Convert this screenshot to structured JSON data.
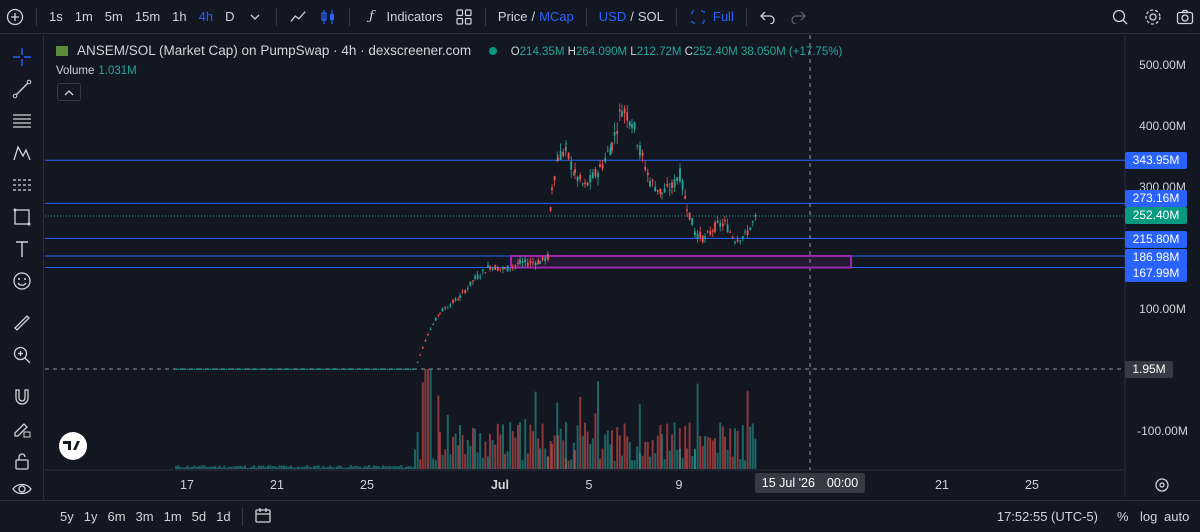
{
  "toolbar": {
    "intervals": [
      "1s",
      "1m",
      "5m",
      "15m",
      "1h",
      "4h",
      "D"
    ],
    "active_interval": "4h",
    "indicators_label": "Indicators",
    "price_label": "Price",
    "mcap_label": "MCap",
    "usd_label": "USD",
    "sol_label": "SOL",
    "full_label": "Full",
    "slash": "/"
  },
  "legend": {
    "title": "ANSEM/SOL (Market Cap) on PumpSwap · 4h · dexscreener.com",
    "o_label": "O",
    "o": "214.35M",
    "h_label": "H",
    "h": "264.090M",
    "l_label": "L",
    "l": "212.72M",
    "c_label": "C",
    "c": "252.40M",
    "change": "38.050M (+17.75%)"
  },
  "volume": {
    "label": "Volume",
    "value": "1.031M"
  },
  "price_axis": {
    "ticks": [
      "500.00M",
      "400.00M",
      "300.00M",
      "100.00M",
      "-100.00M"
    ],
    "tags": [
      "343.95M",
      "273.16M",
      "252.40M",
      "215.80M",
      "186.98M",
      "167.99M"
    ],
    "crosshair": "1.95M"
  },
  "time_axis": {
    "labels": [
      "17",
      "21",
      "25",
      "Jul",
      "5",
      "9",
      "21",
      "25"
    ],
    "crosshair_date": "15 Jul '26",
    "crosshair_time": "00:00"
  },
  "bottom": {
    "ranges": [
      "5y",
      "1y",
      "6m",
      "3m",
      "1m",
      "5d",
      "1d"
    ],
    "clock": "17:52:55 (UTC-5)",
    "percent": "%",
    "log": "log",
    "auto": "auto"
  },
  "colors": {
    "up": "#26a69a",
    "down": "#ef5350",
    "line": "#2962ff",
    "box": "#9c27b0"
  }
}
